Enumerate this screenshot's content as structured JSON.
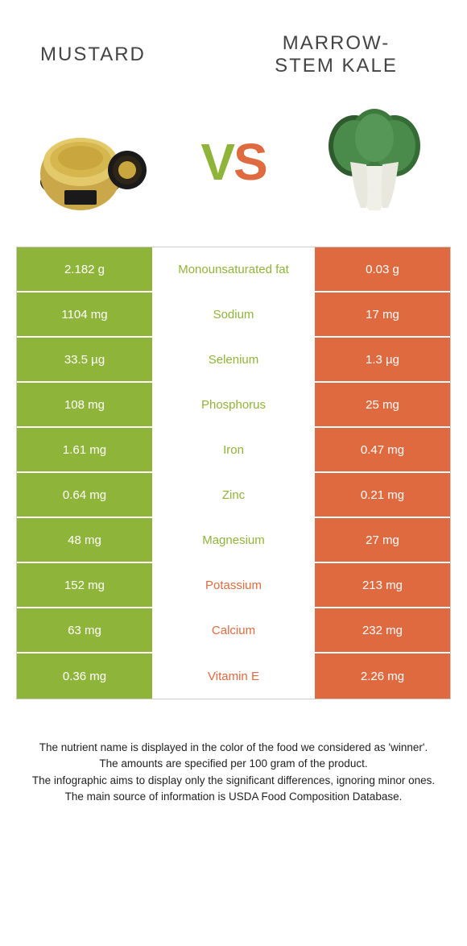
{
  "colors": {
    "left_cell": "#8fb43a",
    "right_cell": "#e06a3f",
    "nutrient_left_winner": "#8fb43a",
    "nutrient_right_winner": "#e06a3f",
    "background": "#ffffff",
    "text": "#333333"
  },
  "header": {
    "left_title": "Mustard",
    "right_title": "Marrow-\nstem Kale"
  },
  "vs": {
    "v": "V",
    "s": "S"
  },
  "rows": [
    {
      "left": "2.182 g",
      "nutrient": "Monounsaturated fat",
      "right": "0.03 g",
      "winner": "left"
    },
    {
      "left": "1104 mg",
      "nutrient": "Sodium",
      "right": "17 mg",
      "winner": "left"
    },
    {
      "left": "33.5 µg",
      "nutrient": "Selenium",
      "right": "1.3 µg",
      "winner": "left"
    },
    {
      "left": "108 mg",
      "nutrient": "Phosphorus",
      "right": "25 mg",
      "winner": "left"
    },
    {
      "left": "1.61 mg",
      "nutrient": "Iron",
      "right": "0.47 mg",
      "winner": "left"
    },
    {
      "left": "0.64 mg",
      "nutrient": "Zinc",
      "right": "0.21 mg",
      "winner": "left"
    },
    {
      "left": "48 mg",
      "nutrient": "Magnesium",
      "right": "27 mg",
      "winner": "left"
    },
    {
      "left": "152 mg",
      "nutrient": "Potassium",
      "right": "213 mg",
      "winner": "right"
    },
    {
      "left": "63 mg",
      "nutrient": "Calcium",
      "right": "232 mg",
      "winner": "right"
    },
    {
      "left": "0.36 mg",
      "nutrient": "Vitamin E",
      "right": "2.26 mg",
      "winner": "right"
    }
  ],
  "footnotes": [
    "The nutrient name is displayed in the color of the food we considered as 'winner'.",
    "The amounts are specified per 100 gram of the product.",
    "The infographic aims to display only the significant differences, ignoring minor ones.",
    "The main source of information is USDA Food Composition Database."
  ]
}
